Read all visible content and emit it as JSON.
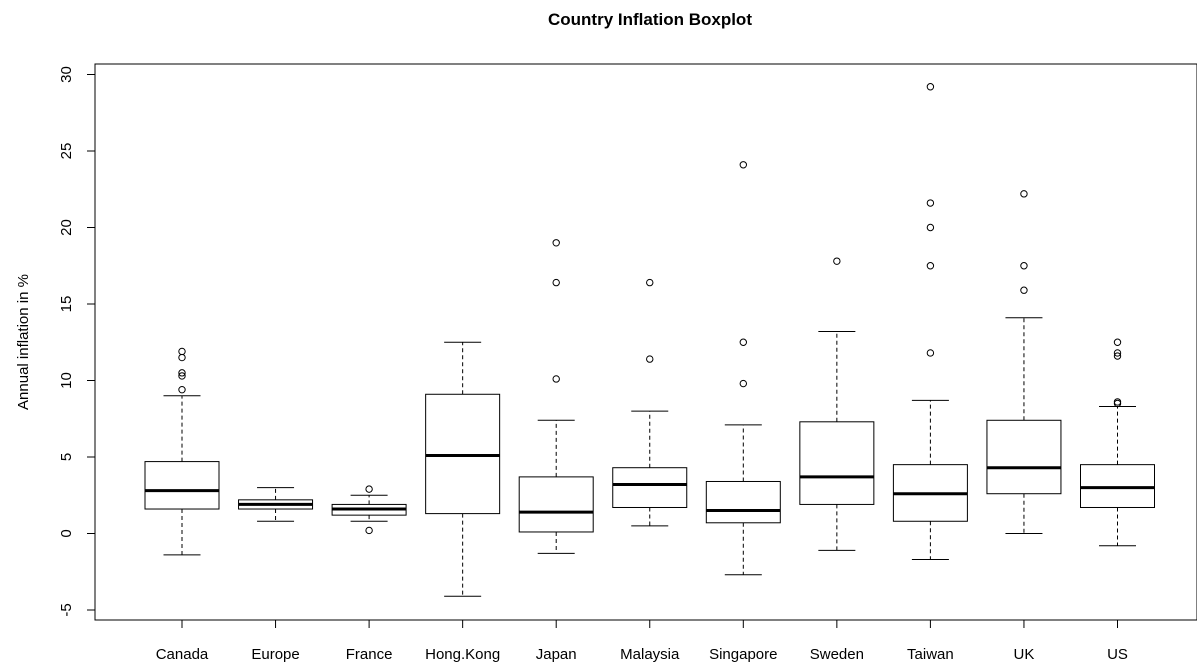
{
  "chart_data": {
    "type": "boxplot",
    "title": "Country Inflation Boxplot",
    "xlabel": "",
    "ylabel": "Annual inflation in %",
    "ylim": [
      -5.5,
      30.5
    ],
    "yticks": [
      -5,
      0,
      5,
      10,
      15,
      20,
      25,
      30
    ],
    "grid": false,
    "categories": [
      "Canada",
      "Europe",
      "France",
      "Hong.Kong",
      "Japan",
      "Malaysia",
      "Singapore",
      "Sweden",
      "Taiwan",
      "UK",
      "US"
    ],
    "boxes": [
      {
        "label": "Canada",
        "whisker_low": -1.4,
        "q1": 1.6,
        "median": 2.8,
        "q3": 4.7,
        "whisker_high": 9.0,
        "outliers": [
          9.4,
          10.3,
          10.5,
          11.5,
          11.9
        ]
      },
      {
        "label": "Europe",
        "whisker_low": 0.8,
        "q1": 1.6,
        "median": 1.9,
        "q3": 2.2,
        "whisker_high": 3.0,
        "outliers": []
      },
      {
        "label": "France",
        "whisker_low": 0.8,
        "q1": 1.2,
        "median": 1.6,
        "q3": 1.9,
        "whisker_high": 2.5,
        "outliers": [
          0.2,
          2.9
        ]
      },
      {
        "label": "Hong.Kong",
        "whisker_low": -4.1,
        "q1": 1.3,
        "median": 5.1,
        "q3": 9.1,
        "whisker_high": 12.5,
        "outliers": []
      },
      {
        "label": "Japan",
        "whisker_low": -1.3,
        "q1": 0.1,
        "median": 1.4,
        "q3": 3.7,
        "whisker_high": 7.4,
        "outliers": [
          10.1,
          16.4,
          19.0
        ]
      },
      {
        "label": "Malaysia",
        "whisker_low": 0.5,
        "q1": 1.7,
        "median": 3.2,
        "q3": 4.3,
        "whisker_high": 8.0,
        "outliers": [
          11.4,
          16.4
        ]
      },
      {
        "label": "Singapore",
        "whisker_low": -2.7,
        "q1": 0.7,
        "median": 1.5,
        "q3": 3.4,
        "whisker_high": 7.1,
        "outliers": [
          9.8,
          12.5,
          24.1
        ]
      },
      {
        "label": "Sweden",
        "whisker_low": -1.1,
        "q1": 1.9,
        "median": 3.7,
        "q3": 7.3,
        "whisker_high": 13.2,
        "outliers": [
          17.8
        ]
      },
      {
        "label": "Taiwan",
        "whisker_low": -1.7,
        "q1": 0.8,
        "median": 2.6,
        "q3": 4.5,
        "whisker_high": 8.7,
        "outliers": [
          11.8,
          17.5,
          20.0,
          21.6,
          29.2
        ]
      },
      {
        "label": "UK",
        "whisker_low": 0.0,
        "q1": 2.6,
        "median": 4.3,
        "q3": 7.4,
        "whisker_high": 14.1,
        "outliers": [
          15.9,
          17.5,
          22.2
        ]
      },
      {
        "label": "US",
        "whisker_low": -0.8,
        "q1": 1.7,
        "median": 3.0,
        "q3": 4.5,
        "whisker_high": 8.3,
        "outliers": [
          8.5,
          8.6,
          11.6,
          11.8,
          12.5
        ]
      }
    ]
  }
}
